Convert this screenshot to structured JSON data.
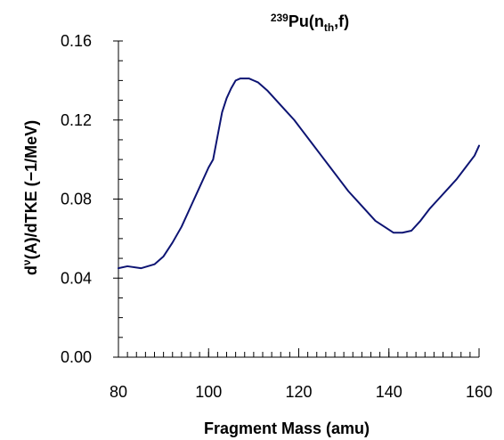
{
  "chart_data": {
    "type": "line",
    "title": {
      "superscript": "239",
      "main": "Pu(n",
      "subscript": "th",
      "suffix": ",f)"
    },
    "xlabel": "Fragment Mass (amu)",
    "ylabel": {
      "prefix": "d",
      "superscript": "ν",
      "rest": "(A)/dTKE (−1/MeV)"
    },
    "xlim": [
      80,
      160
    ],
    "ylim": [
      0.0,
      0.16
    ],
    "x_ticks": [
      "80",
      "100",
      "120",
      "140",
      "160"
    ],
    "y_ticks": [
      "0.00",
      "0.04",
      "0.08",
      "0.12",
      "0.16"
    ],
    "grid": false,
    "colors": {
      "line": "#0d1473",
      "axis": "#000000"
    },
    "series": [
      {
        "x": [
          80,
          82,
          85,
          88,
          90,
          92,
          94,
          96,
          98,
          100,
          101,
          102,
          103,
          104,
          105,
          106,
          107,
          108,
          109,
          110,
          111,
          113,
          115,
          117,
          119,
          121,
          123,
          125,
          127,
          129,
          131,
          133,
          135,
          137,
          139,
          141,
          143,
          145,
          147,
          149,
          151,
          153,
          155,
          157,
          159,
          160
        ],
        "y": [
          0.045,
          0.046,
          0.045,
          0.047,
          0.051,
          0.058,
          0.066,
          0.076,
          0.086,
          0.096,
          0.1,
          0.112,
          0.124,
          0.131,
          0.136,
          0.14,
          0.141,
          0.141,
          0.141,
          0.14,
          0.139,
          0.135,
          0.13,
          0.125,
          0.12,
          0.114,
          0.108,
          0.102,
          0.096,
          0.09,
          0.084,
          0.079,
          0.074,
          0.069,
          0.066,
          0.063,
          0.063,
          0.064,
          0.069,
          0.075,
          0.08,
          0.085,
          0.09,
          0.096,
          0.102,
          0.107
        ]
      }
    ]
  }
}
